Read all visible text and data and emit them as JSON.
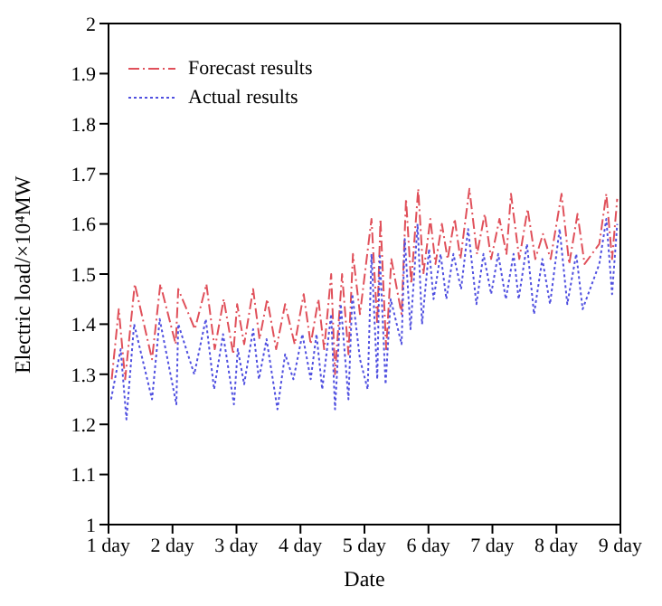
{
  "chart_data": {
    "type": "line",
    "xlabel": "Date",
    "ylabel": "Electric load/×10⁴MW",
    "xlim": [
      1,
      9
    ],
    "xticks": [
      {
        "value": 1,
        "label": "1 day"
      },
      {
        "value": 2,
        "label": "2 day"
      },
      {
        "value": 3,
        "label": "3 day"
      },
      {
        "value": 4,
        "label": "4 day"
      },
      {
        "value": 5,
        "label": "5 day"
      },
      {
        "value": 6,
        "label": "6 day"
      },
      {
        "value": 7,
        "label": "7 day"
      },
      {
        "value": 8,
        "label": "8 day"
      },
      {
        "value": 9,
        "label": "9 day"
      }
    ],
    "ylim": [
      1,
      2
    ],
    "yticks": [
      1,
      1.1,
      1.2,
      1.3,
      1.4,
      1.5,
      1.6,
      1.7,
      1.8,
      1.9,
      2
    ],
    "legend": "top left",
    "marker": "none",
    "series": [
      {
        "name": "Forecast results",
        "color": "#e0505a",
        "line_style": "dashed",
        "x": [
          1.05,
          1.16,
          1.26,
          1.41,
          1.68,
          1.81,
          2.05,
          2.09,
          2.35,
          2.53,
          2.66,
          2.8,
          2.95,
          3.01,
          3.12,
          3.26,
          3.36,
          3.48,
          3.62,
          3.76,
          3.91,
          4.05,
          4.16,
          4.28,
          4.37,
          4.48,
          4.54,
          4.65,
          4.75,
          4.82,
          4.93,
          5.11,
          5.2,
          5.25,
          5.34,
          5.42,
          5.58,
          5.65,
          5.73,
          5.84,
          5.92,
          6.03,
          6.11,
          6.21,
          6.3,
          6.41,
          6.5,
          6.64,
          6.76,
          6.88,
          6.98,
          7.11,
          7.22,
          7.29,
          7.42,
          7.55,
          7.67,
          7.79,
          7.91,
          8.08,
          8.2,
          8.33,
          8.44,
          8.67,
          8.78,
          8.87,
          8.95
        ],
        "values": [
          1.29,
          1.43,
          1.29,
          1.48,
          1.33,
          1.48,
          1.36,
          1.47,
          1.39,
          1.48,
          1.35,
          1.45,
          1.34,
          1.44,
          1.36,
          1.47,
          1.37,
          1.45,
          1.35,
          1.44,
          1.36,
          1.46,
          1.36,
          1.45,
          1.35,
          1.5,
          1.3,
          1.5,
          1.34,
          1.54,
          1.42,
          1.61,
          1.4,
          1.61,
          1.35,
          1.53,
          1.42,
          1.65,
          1.48,
          1.67,
          1.5,
          1.61,
          1.52,
          1.6,
          1.53,
          1.61,
          1.53,
          1.67,
          1.54,
          1.62,
          1.53,
          1.61,
          1.54,
          1.66,
          1.53,
          1.63,
          1.53,
          1.58,
          1.53,
          1.66,
          1.52,
          1.62,
          1.52,
          1.56,
          1.66,
          1.53,
          1.65
        ]
      },
      {
        "name": "Actual results",
        "color": "#5050e0",
        "line_style": "dotted",
        "x": [
          1.04,
          1.19,
          1.28,
          1.4,
          1.68,
          1.8,
          2.06,
          2.09,
          2.34,
          2.52,
          2.65,
          2.79,
          2.96,
          3.02,
          3.12,
          3.26,
          3.35,
          3.47,
          3.64,
          3.76,
          3.89,
          4.03,
          4.16,
          4.25,
          4.34,
          4.48,
          4.54,
          4.63,
          4.75,
          4.81,
          4.93,
          5.05,
          5.11,
          5.2,
          5.24,
          5.33,
          5.41,
          5.58,
          5.63,
          5.72,
          5.83,
          5.9,
          6.01,
          6.08,
          6.19,
          6.28,
          6.39,
          6.51,
          6.62,
          6.75,
          6.86,
          6.98,
          7.09,
          7.21,
          7.33,
          7.41,
          7.54,
          7.65,
          7.78,
          7.9,
          8.05,
          8.17,
          8.31,
          8.41,
          8.67,
          8.78,
          8.87,
          8.95
        ],
        "values": [
          1.25,
          1.35,
          1.21,
          1.4,
          1.25,
          1.41,
          1.24,
          1.4,
          1.3,
          1.41,
          1.27,
          1.38,
          1.24,
          1.35,
          1.28,
          1.39,
          1.29,
          1.37,
          1.23,
          1.34,
          1.29,
          1.38,
          1.29,
          1.38,
          1.27,
          1.42,
          1.23,
          1.44,
          1.25,
          1.46,
          1.33,
          1.27,
          1.54,
          1.29,
          1.54,
          1.28,
          1.45,
          1.36,
          1.57,
          1.39,
          1.6,
          1.4,
          1.55,
          1.45,
          1.54,
          1.45,
          1.54,
          1.47,
          1.59,
          1.44,
          1.54,
          1.46,
          1.54,
          1.45,
          1.54,
          1.45,
          1.56,
          1.42,
          1.53,
          1.44,
          1.59,
          1.44,
          1.54,
          1.43,
          1.52,
          1.61,
          1.46,
          1.6
        ]
      }
    ]
  }
}
